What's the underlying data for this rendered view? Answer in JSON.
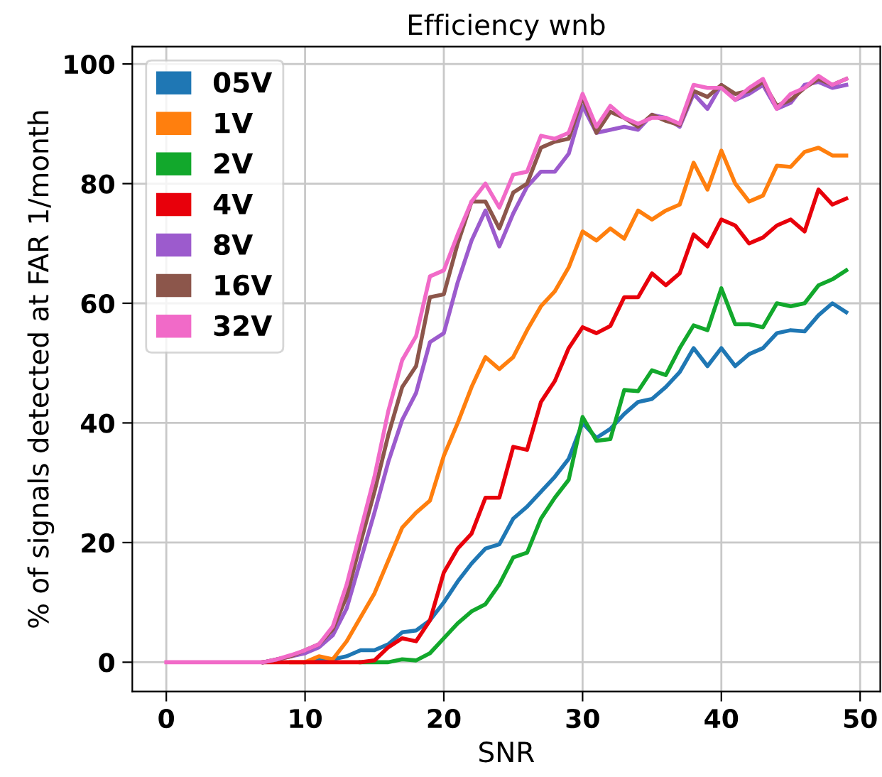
{
  "chart_data": {
    "type": "line",
    "title": "Efficiency wnb",
    "xlabel": "SNR",
    "ylabel": "% of signals detected at FAR 1/month",
    "x": [
      0,
      1,
      2,
      3,
      4,
      5,
      6,
      7,
      8,
      9,
      10,
      11,
      12,
      13,
      14,
      15,
      16,
      17,
      18,
      19,
      20,
      21,
      22,
      23,
      24,
      25,
      26,
      27,
      28,
      29,
      30,
      31,
      32,
      33,
      34,
      35,
      36,
      37,
      38,
      39,
      40,
      41,
      42,
      43,
      44,
      45,
      46,
      47,
      48,
      49
    ],
    "series": [
      {
        "name": "05V",
        "color": "#1f77b4",
        "values": [
          null,
          null,
          null,
          null,
          null,
          null,
          null,
          null,
          null,
          null,
          0,
          0.3,
          0.5,
          1,
          2,
          2,
          3,
          5,
          5.3,
          7,
          10,
          13.5,
          16.5,
          19,
          19.7,
          24,
          26,
          28.5,
          31,
          34,
          40,
          37.5,
          39,
          41.5,
          43.5,
          44,
          46,
          48.5,
          52.5,
          49.5,
          52.5,
          49.5,
          51.5,
          52.5,
          55,
          55.5,
          55.3,
          58,
          60,
          58.5
        ]
      },
      {
        "name": "1V",
        "color": "#ff7f0e",
        "values": [
          null,
          null,
          null,
          null,
          null,
          null,
          null,
          null,
          null,
          0,
          0,
          1,
          0.5,
          3.5,
          7.5,
          11.5,
          17,
          22.5,
          25,
          27,
          34.5,
          40,
          46,
          51,
          49,
          51,
          55.5,
          59.5,
          62,
          66,
          72,
          70.5,
          72.5,
          70.8,
          75.5,
          74,
          75.5,
          76.5,
          83.5,
          79,
          85.5,
          80,
          77,
          78,
          83,
          82.8,
          85.3,
          86,
          84.7,
          84.7
        ]
      },
      {
        "name": "2V",
        "color": "#12a82c",
        "values": [
          null,
          null,
          null,
          null,
          null,
          null,
          null,
          null,
          null,
          null,
          null,
          null,
          null,
          null,
          0,
          0,
          0,
          0.5,
          0.3,
          1.5,
          4,
          6.5,
          8.5,
          9.7,
          13,
          17.5,
          18.3,
          24,
          27.5,
          30.5,
          41,
          37,
          37.3,
          45.5,
          45.3,
          48.8,
          48,
          52.5,
          56.3,
          55.5,
          62.5,
          56.5,
          56.5,
          56,
          60,
          59.5,
          60,
          63,
          64,
          65.5
        ]
      },
      {
        "name": "4V",
        "color": "#e8000b",
        "values": [
          null,
          null,
          null,
          null,
          null,
          null,
          null,
          0,
          0,
          0,
          0,
          0,
          0,
          0,
          0,
          0.3,
          2.5,
          4,
          3.5,
          7,
          15,
          19,
          21.5,
          27.5,
          27.5,
          36,
          35.5,
          43.5,
          47,
          52.5,
          56,
          55,
          56.2,
          61,
          61,
          65,
          63,
          65,
          71.5,
          69.5,
          74,
          73,
          70,
          71,
          73,
          74,
          72,
          79,
          76.5,
          77.5
        ]
      },
      {
        "name": "8V",
        "color": "#9c5bcd",
        "values": [
          null,
          null,
          null,
          null,
          null,
          null,
          null,
          0,
          0.5,
          1,
          1.5,
          2.5,
          4.5,
          9,
          17,
          25,
          33.5,
          40.5,
          45,
          53.5,
          55,
          63.5,
          70.5,
          75.5,
          69.5,
          75,
          79.5,
          82,
          82,
          85,
          93,
          88.5,
          89,
          89.5,
          89,
          91.5,
          91,
          89.5,
          95,
          92.5,
          96.5,
          94,
          95,
          96.5,
          92.5,
          93.5,
          96.5,
          97,
          96,
          96.5
        ]
      },
      {
        "name": "16V",
        "color": "#8c564b",
        "values": [
          null,
          null,
          null,
          null,
          null,
          null,
          null,
          0,
          0.5,
          1,
          2,
          3,
          5.5,
          11,
          20,
          28.5,
          38,
          46,
          49.5,
          61,
          61.5,
          70,
          77,
          77,
          72.5,
          78.5,
          80,
          86,
          87,
          87.5,
          94.5,
          88.5,
          92,
          91,
          89.5,
          91.5,
          90.5,
          89.8,
          95.5,
          94.5,
          96.5,
          95,
          95.5,
          97,
          93,
          94,
          96,
          97.5,
          96.5,
          97.5
        ]
      },
      {
        "name": "32V",
        "color": "#f16ac8",
        "values": [
          0,
          0,
          0,
          0,
          0,
          0,
          0,
          0,
          0.5,
          1.2,
          2,
          3,
          6,
          13,
          22,
          31,
          42,
          50.5,
          54.5,
          64.5,
          65.5,
          71.5,
          77,
          80,
          76,
          81.5,
          82,
          88,
          87.5,
          88.5,
          95,
          89.5,
          93,
          91,
          90,
          91,
          91,
          90,
          96.5,
          96,
          96,
          94,
          96,
          97.5,
          92.5,
          95,
          96,
          98,
          96.5,
          97.5
        ]
      }
    ],
    "xlim": [
      -2.45,
      51.45
    ],
    "ylim": [
      -4.9,
      102.9
    ],
    "xticks": [
      0,
      10,
      20,
      30,
      40,
      50
    ],
    "yticks": [
      0,
      20,
      40,
      60,
      80,
      100
    ],
    "grid": true,
    "legend": "top left",
    "marker": "none",
    "line_style": "solid"
  }
}
